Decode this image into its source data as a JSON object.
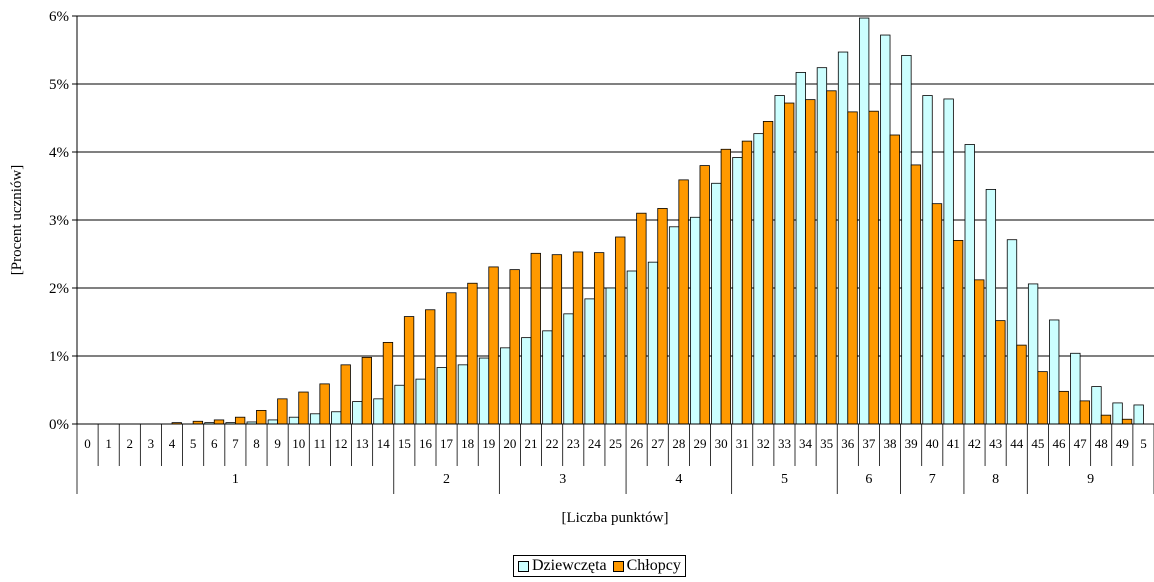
{
  "chart_data": {
    "type": "bar",
    "ylabel": "[Procent uczniów]",
    "xlabel": "[Liczba punktów]",
    "ylim": [
      0,
      6
    ],
    "y_ticks": [
      "0%",
      "1%",
      "2%",
      "3%",
      "4%",
      "5%",
      "6%"
    ],
    "categories": [
      "0",
      "1",
      "2",
      "3",
      "4",
      "5",
      "6",
      "7",
      "8",
      "9",
      "10",
      "11",
      "12",
      "13",
      "14",
      "15",
      "16",
      "17",
      "18",
      "19",
      "20",
      "21",
      "22",
      "23",
      "24",
      "25",
      "26",
      "27",
      "28",
      "29",
      "30",
      "31",
      "32",
      "33",
      "34",
      "35",
      "36",
      "37",
      "38",
      "39",
      "40",
      "41",
      "42",
      "43",
      "44",
      "45",
      "46",
      "47",
      "48",
      "49",
      "5"
    ],
    "groups": [
      {
        "label": "1",
        "start": 0,
        "end": 14
      },
      {
        "label": "2",
        "start": 15,
        "end": 19
      },
      {
        "label": "3",
        "start": 20,
        "end": 25
      },
      {
        "label": "4",
        "start": 26,
        "end": 30
      },
      {
        "label": "5",
        "start": 31,
        "end": 35
      },
      {
        "label": "6",
        "start": 36,
        "end": 38
      },
      {
        "label": "7",
        "start": 39,
        "end": 41
      },
      {
        "label": "8",
        "start": 42,
        "end": 44
      },
      {
        "label": "9",
        "start": 45,
        "end": 50
      }
    ],
    "series": [
      {
        "name": "Dziewczęta",
        "color": "#ccffff",
        "values": [
          0,
          0,
          0,
          0,
          0,
          0,
          0.02,
          0.02,
          0.03,
          0.06,
          0.1,
          0.15,
          0.18,
          0.33,
          0.37,
          0.57,
          0.66,
          0.83,
          0.87,
          0.97,
          1.12,
          1.27,
          1.37,
          1.62,
          1.84,
          2.0,
          2.25,
          2.38,
          2.9,
          3.04,
          3.54,
          3.92,
          4.27,
          4.83,
          5.17,
          5.24,
          5.47,
          5.97,
          5.72,
          5.42,
          4.83,
          4.78,
          4.11,
          3.45,
          2.71,
          2.06,
          1.53,
          1.04,
          0.55,
          0.31,
          0.28
        ]
      },
      {
        "name": "Chłopcy",
        "color": "#ff9900",
        "values": [
          0,
          0,
          0,
          0,
          0.02,
          0.04,
          0.06,
          0.1,
          0.2,
          0.37,
          0.47,
          0.59,
          0.87,
          0.98,
          1.2,
          1.58,
          1.68,
          1.93,
          2.07,
          2.31,
          2.27,
          2.51,
          2.49,
          2.53,
          2.52,
          2.75,
          3.1,
          3.17,
          3.59,
          3.8,
          4.04,
          4.16,
          4.45,
          4.72,
          4.77,
          4.9,
          4.59,
          4.6,
          4.25,
          3.81,
          3.24,
          2.7,
          2.12,
          1.52,
          1.16,
          0.77,
          0.48,
          0.34,
          0.13,
          0.07,
          0
        ]
      }
    ],
    "legend_position": "bottom",
    "grid": true
  }
}
